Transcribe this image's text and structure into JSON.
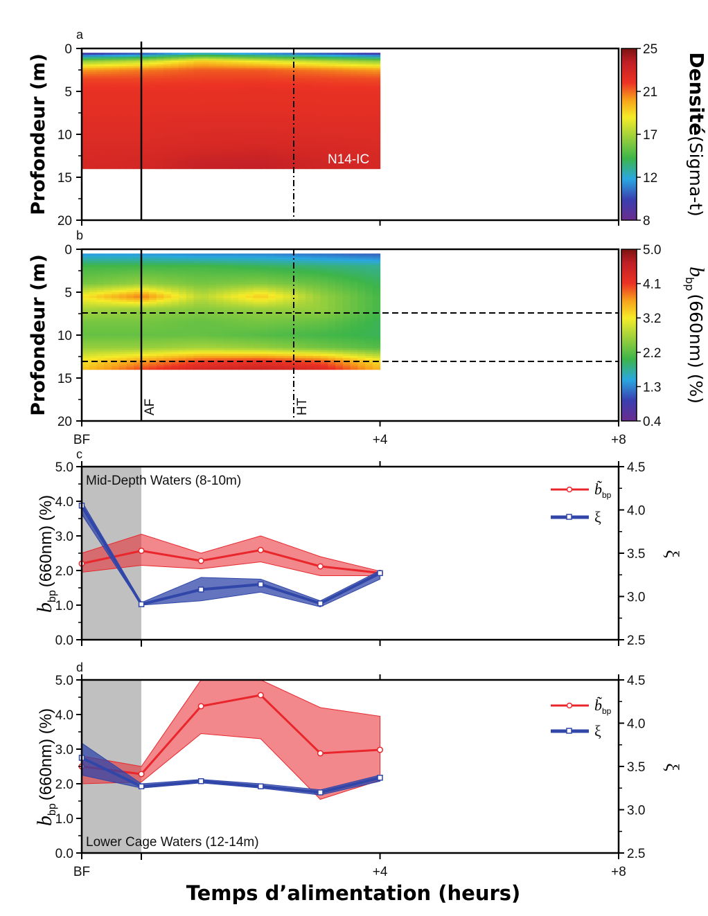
{
  "chart_data": [
    {
      "panel": "a",
      "type": "heatmap",
      "panel_label": "a",
      "ylabel": "Profondeur (m)",
      "yticks": [
        "0",
        "5",
        "10",
        "15",
        "20"
      ],
      "ylim": [
        0,
        20
      ],
      "annotation": "N14-IC",
      "colorbar": {
        "title_bold": "Densité",
        "title_rest": "(Sigma-t)",
        "ticks": [
          "25",
          "21",
          "17",
          "12",
          "8"
        ],
        "range": [
          8,
          25
        ]
      },
      "x": [
        0,
        1,
        2,
        3,
        4,
        5
      ],
      "depth": [
        0.5,
        1.5,
        2.5,
        3.5,
        5,
        7,
        9,
        11,
        13,
        14
      ],
      "values": [
        [
          9,
          10,
          12,
          11,
          10,
          9
        ],
        [
          16,
          17,
          19,
          18,
          17,
          16
        ],
        [
          20,
          20.5,
          21,
          21,
          20.5,
          20
        ],
        [
          21.3,
          21.3,
          21.4,
          21.4,
          21.3,
          21.2
        ],
        [
          21.8,
          21.8,
          21.8,
          21.9,
          21.8,
          21.8
        ],
        [
          22,
          22,
          22,
          22,
          22,
          22
        ],
        [
          22.2,
          22.2,
          22.3,
          22.3,
          22.2,
          22.2
        ],
        [
          22.4,
          22.4,
          22.5,
          22.6,
          22.5,
          22.4
        ],
        [
          22.6,
          22.7,
          23.2,
          23.3,
          22.9,
          22.6
        ],
        [
          22.7,
          22.8,
          23.4,
          23.5,
          23.0,
          22.7
        ]
      ]
    },
    {
      "panel": "b",
      "type": "heatmap",
      "panel_label": "b",
      "ylabel": "Profondeur (m)",
      "yticks": [
        "0",
        "5",
        "10",
        "15",
        "20"
      ],
      "ylim": [
        0,
        20
      ],
      "markers": [
        "AF",
        "HT"
      ],
      "colorbar": {
        "title_rest": "(660nm) (%)",
        "sub": "bp",
        "ticks": [
          "5.0",
          "4.1",
          "3.2",
          "2.2",
          "1.3",
          "0.4"
        ],
        "range": [
          0.4,
          5.0
        ]
      },
      "x": [
        0,
        1,
        2,
        3,
        4,
        5
      ],
      "depth": [
        0.5,
        2,
        4,
        5.5,
        7,
        8.5,
        10,
        11.5,
        13,
        14
      ],
      "values": [
        [
          1.4,
          1.4,
          1.3,
          1.3,
          1.2,
          1.1
        ],
        [
          2.1,
          2.1,
          2.1,
          2.0,
          1.9,
          1.8
        ],
        [
          2.4,
          2.6,
          2.4,
          2.5,
          2.3,
          2.0
        ],
        [
          3.2,
          3.8,
          2.8,
          3.4,
          2.6,
          2.1
        ],
        [
          2.7,
          2.6,
          2.5,
          2.6,
          2.6,
          2.1
        ],
        [
          2.4,
          2.4,
          2.3,
          2.4,
          2.3,
          2.0
        ],
        [
          2.3,
          2.3,
          2.3,
          2.2,
          2.1,
          2.0
        ],
        [
          2.6,
          2.6,
          2.7,
          2.6,
          2.4,
          2.2
        ],
        [
          3.2,
          3.6,
          4.0,
          4.1,
          3.9,
          3.2
        ],
        [
          3.4,
          4.0,
          4.4,
          4.5,
          4.3,
          3.5
        ]
      ]
    },
    {
      "panel": "c",
      "type": "line",
      "panel_label": "c",
      "annotation": "Mid-Depth Waters (8-10m)",
      "ylabel_left": "(660nm) (%)",
      "ylabel_right": "ξ",
      "sub": "bp",
      "yticks_left": [
        "0.0",
        "1.0",
        "2.0",
        "3.0",
        "4.0",
        "5.0"
      ],
      "yticks_right": [
        "2.5",
        "3.0",
        "3.5",
        "4.0",
        "4.5"
      ],
      "ylim_left": [
        0,
        5
      ],
      "ylim_right": [
        2.5,
        4.5
      ],
      "x": [
        0,
        1,
        2,
        3,
        4,
        5
      ],
      "series": [
        {
          "name": "b̃",
          "axis": "left",
          "color": "#e8262c",
          "values": [
            2.2,
            2.57,
            2.28,
            2.59,
            2.12,
            1.93
          ],
          "upper": [
            2.5,
            3.05,
            2.5,
            3.0,
            2.4,
            1.98
          ],
          "lower": [
            1.95,
            2.15,
            2.05,
            2.25,
            1.85,
            1.85
          ]
        },
        {
          "name": "ξ",
          "axis": "right",
          "color": "#3046a8",
          "values": [
            4.05,
            2.91,
            3.08,
            3.14,
            2.92,
            3.27
          ],
          "upper": [
            4.1,
            2.93,
            3.22,
            3.2,
            2.95,
            3.3
          ],
          "lower": [
            3.95,
            2.9,
            2.95,
            3.05,
            2.88,
            3.2
          ]
        }
      ]
    },
    {
      "panel": "d",
      "type": "line",
      "panel_label": "d",
      "annotation": "Lower Cage Waters (12-14m)",
      "ylabel_left": "(660nm) (%)",
      "ylabel_right": "ξ",
      "sub": "bp",
      "yticks_left": [
        "0.0",
        "1.0",
        "2.0",
        "3.0",
        "4.0",
        "5.0"
      ],
      "yticks_right": [
        "2.5",
        "3.0",
        "3.5",
        "4.0",
        "4.5"
      ],
      "ylim_left": [
        0,
        5
      ],
      "ylim_right": [
        2.5,
        4.5
      ],
      "x": [
        0,
        1,
        2,
        3,
        4,
        5
      ],
      "xticks": [
        "BF",
        "+4",
        "+8"
      ],
      "series": [
        {
          "name": "b̃",
          "axis": "left",
          "color": "#e8262c",
          "values": [
            2.5,
            2.28,
            4.24,
            4.56,
            2.88,
            2.98
          ],
          "upper": [
            2.8,
            2.5,
            5.0,
            5.0,
            4.2,
            3.95
          ],
          "lower": [
            2.0,
            2.05,
            3.45,
            3.3,
            1.55,
            2.1
          ]
        },
        {
          "name": "ξ",
          "axis": "right",
          "color": "#3046a8",
          "values": [
            3.6,
            3.27,
            3.33,
            3.27,
            3.2,
            3.37
          ],
          "upper": [
            3.77,
            3.3,
            3.35,
            3.3,
            3.23,
            3.4
          ],
          "lower": [
            3.4,
            3.25,
            3.31,
            3.25,
            3.17,
            3.33
          ]
        }
      ]
    }
  ],
  "shared": {
    "xticks": [
      "BF",
      "+4",
      "+8"
    ],
    "xlabel": "Temps d’alimentation (heurs)",
    "legend_b": "b̃",
    "legend_xi": "ξ"
  }
}
